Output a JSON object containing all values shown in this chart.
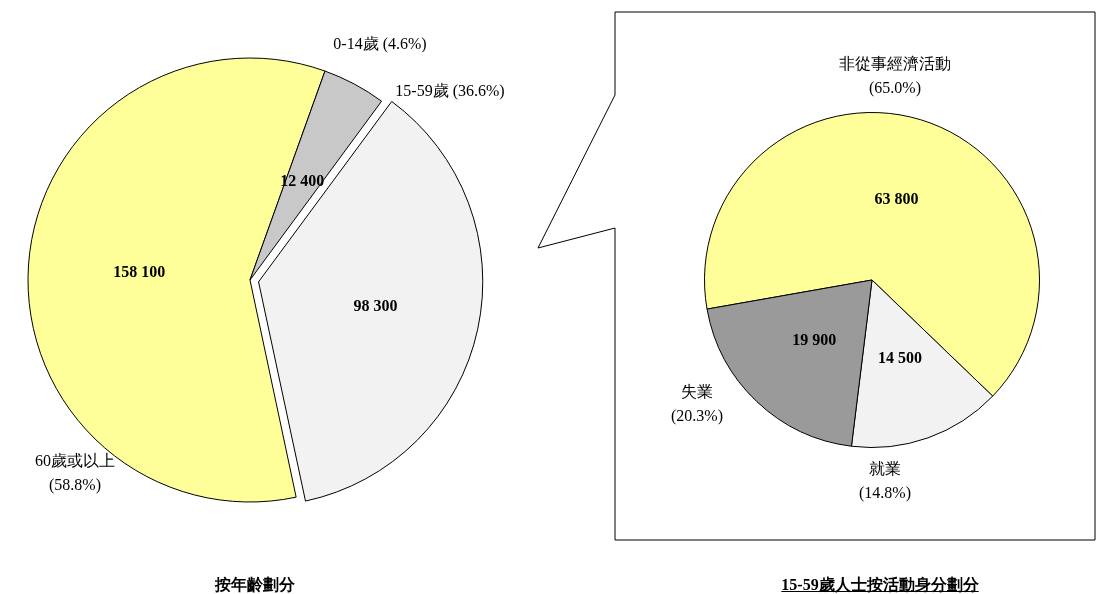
{
  "chart_data": [
    {
      "type": "pie",
      "title": "按年齡劃分",
      "categories": [
        "60歲或以上 (58.8%)",
        "0-14歲 (4.6%)",
        "15-59歲 (36.6%)"
      ],
      "values": [
        158100,
        12400,
        98300
      ],
      "colors": [
        "#ffff99",
        "#c8c8c8",
        "#f2f2f2"
      ],
      "value_labels": [
        "158 100",
        "12 400",
        "98 300"
      ]
    },
    {
      "type": "pie",
      "title": "15-59歲人士按活動身分劃分",
      "categories": [
        "非從事經濟活動 (65.0%)",
        "就業 (14.8%)",
        "失業 (20.3%)"
      ],
      "values": [
        63800,
        14500,
        19900
      ],
      "colors": [
        "#ffff99",
        "#f2f2f2",
        "#9a9a9a"
      ],
      "value_labels": [
        "63 800",
        "14 500",
        "19 900"
      ]
    }
  ]
}
